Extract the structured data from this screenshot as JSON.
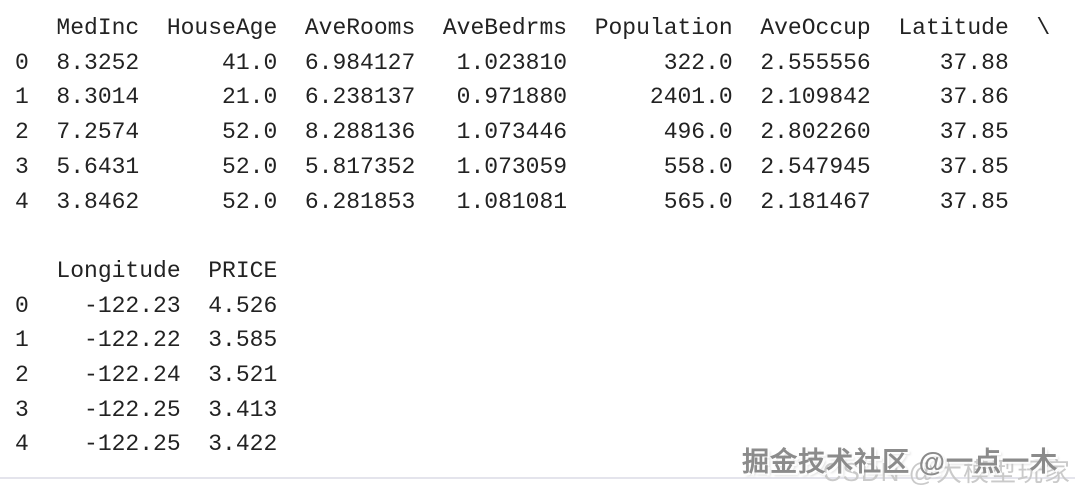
{
  "colors": {
    "background": "#ffffff",
    "text": "#222222",
    "bottom_border": "#e4e4ec",
    "watermark_primary": "#8b8b8b",
    "watermark_secondary": "#cacaca"
  },
  "console_output": {
    "tables": [
      {
        "columns": [
          "MedInc",
          "HouseAge",
          "AveRooms",
          "AveBedrms",
          "Population",
          "AveOccup",
          "Latitude",
          "\\"
        ],
        "rows": [
          {
            "index": "0",
            "values": [
              "8.3252",
              "41.0",
              "6.984127",
              "1.023810",
              "322.0",
              "2.555556",
              "37.88"
            ]
          },
          {
            "index": "1",
            "values": [
              "8.3014",
              "21.0",
              "6.238137",
              "0.971880",
              "2401.0",
              "2.109842",
              "37.86"
            ]
          },
          {
            "index": "2",
            "values": [
              "7.2574",
              "52.0",
              "8.288136",
              "1.073446",
              "496.0",
              "2.802260",
              "37.85"
            ]
          },
          {
            "index": "3",
            "values": [
              "5.6431",
              "52.0",
              "5.817352",
              "1.073059",
              "558.0",
              "2.547945",
              "37.85"
            ]
          },
          {
            "index": "4",
            "values": [
              "3.8462",
              "52.0",
              "6.281853",
              "1.081081",
              "565.0",
              "2.181467",
              "37.85"
            ]
          }
        ]
      },
      {
        "columns": [
          "Longitude",
          "PRICE"
        ],
        "rows": [
          {
            "index": "0",
            "values": [
              "-122.23",
              "4.526"
            ]
          },
          {
            "index": "1",
            "values": [
              "-122.22",
              "3.585"
            ]
          },
          {
            "index": "2",
            "values": [
              "-122.24",
              "3.521"
            ]
          },
          {
            "index": "3",
            "values": [
              "-122.25",
              "3.413"
            ]
          },
          {
            "index": "4",
            "values": [
              "-122.25",
              "3.422"
            ]
          }
        ]
      }
    ]
  },
  "watermarks": {
    "primary": "掘金技术社区 @一点一木",
    "secondary": "CSDN @大模型玩家"
  }
}
